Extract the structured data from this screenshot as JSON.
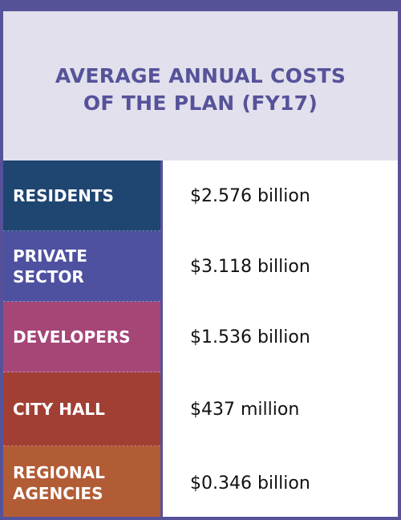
{
  "header": {
    "title_line1": "AVERAGE ANNUAL COSTS",
    "title_line2": "OF THE PLAN (FY17)"
  },
  "rows": [
    {
      "label_line1": "RESIDENTS",
      "label_line2": "",
      "value": "$2.576 billion",
      "color": "#1f4571"
    },
    {
      "label_line1": "PRIVATE",
      "label_line2": "SECTOR",
      "value": "$3.118 billion",
      "color": "#4e51a0"
    },
    {
      "label_line1": "DEVELOPERS",
      "label_line2": "",
      "value": "$1.536 billion",
      "color": "#a54677"
    },
    {
      "label_line1": "CITY HALL",
      "label_line2": "",
      "value": "$437 million",
      "color": "#a23f34"
    },
    {
      "label_line1": "REGIONAL",
      "label_line2": "AGENCIES",
      "value": "$0.346 billion",
      "color": "#b25c36"
    }
  ],
  "colors": {
    "frame": "#56529a",
    "header_bg": "#e1e0ec",
    "header_text": "#56529a"
  }
}
